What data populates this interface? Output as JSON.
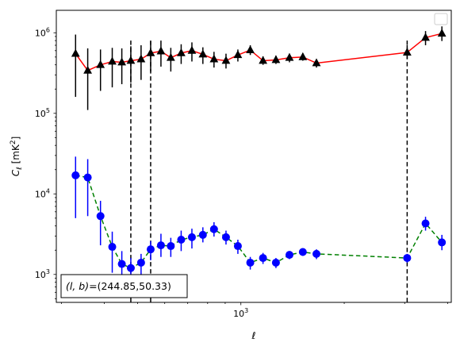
{
  "chart_data": {
    "type": "scatter",
    "title": "",
    "xlabel": "ℓ",
    "ylabel_parts": {
      "sym": "C",
      "sub": "ℓ",
      "unit_open": "  [mK",
      "unit_sup": "2",
      "unit_close": "]"
    },
    "x_scale": "log",
    "y_scale": "log",
    "xlim": [
      290,
      4100
    ],
    "ylim": [
      450,
      1900000
    ],
    "grid": false,
    "legend": {
      "placement": "top-right",
      "entries": []
    },
    "x_major_ticks": [
      {
        "value": 1000,
        "base": "10",
        "exp": "3"
      }
    ],
    "y_major_ticks": [
      {
        "value": 1000,
        "base": "10",
        "exp": "3"
      },
      {
        "value": 10000,
        "base": "10",
        "exp": "4"
      },
      {
        "value": 100000,
        "base": "10",
        "exp": "5"
      },
      {
        "value": 1000000,
        "base": "10",
        "exp": "6"
      }
    ],
    "vlines": [
      {
        "x": 478,
        "from": 450,
        "to": 800000,
        "color": "#000000",
        "style": "dashed"
      },
      {
        "x": 546,
        "from": 450,
        "to": 800000,
        "color": "#000000",
        "style": "dashed"
      },
      {
        "x": 3050,
        "from": 450,
        "to": 800000,
        "color": "#000000",
        "style": "dashed"
      }
    ],
    "series": [
      {
        "marker": "triangle",
        "marker_color": "#000000",
        "line_color": "#ff0000",
        "line_style": "solid",
        "err_color": "#000000",
        "points": [
          {
            "x": 330,
            "y": 550000,
            "lo": 160000,
            "hi": 950000
          },
          {
            "x": 358,
            "y": 340000,
            "lo": 110000,
            "hi": 640000
          },
          {
            "x": 390,
            "y": 400000,
            "lo": 190000,
            "hi": 620000
          },
          {
            "x": 422,
            "y": 440000,
            "lo": 210000,
            "hi": 650000
          },
          {
            "x": 450,
            "y": 430000,
            "lo": 230000,
            "hi": 640000
          },
          {
            "x": 478,
            "y": 450000,
            "lo": 240000,
            "hi": 680000
          },
          {
            "x": 512,
            "y": 470000,
            "lo": 260000,
            "hi": 700000
          },
          {
            "x": 546,
            "y": 560000,
            "lo": 330000,
            "hi": 790000
          },
          {
            "x": 585,
            "y": 590000,
            "lo": 380000,
            "hi": 800000
          },
          {
            "x": 625,
            "y": 490000,
            "lo": 330000,
            "hi": 650000
          },
          {
            "x": 670,
            "y": 560000,
            "lo": 410000,
            "hi": 720000
          },
          {
            "x": 720,
            "y": 600000,
            "lo": 440000,
            "hi": 760000
          },
          {
            "x": 775,
            "y": 540000,
            "lo": 410000,
            "hi": 660000
          },
          {
            "x": 835,
            "y": 470000,
            "lo": 370000,
            "hi": 580000
          },
          {
            "x": 905,
            "y": 450000,
            "lo": 360000,
            "hi": 550000
          },
          {
            "x": 980,
            "y": 530000,
            "lo": 440000,
            "hi": 620000
          },
          {
            "x": 1065,
            "y": 610000,
            "lo": 530000,
            "hi": 700000
          },
          {
            "x": 1160,
            "y": 450000,
            "lo": 400000,
            "hi": 510000
          },
          {
            "x": 1265,
            "y": 460000,
            "lo": 410000,
            "hi": 520000
          },
          {
            "x": 1385,
            "y": 490000,
            "lo": 430000,
            "hi": 550000
          },
          {
            "x": 1515,
            "y": 500000,
            "lo": 450000,
            "hi": 560000
          },
          {
            "x": 1660,
            "y": 420000,
            "lo": 370000,
            "hi": 470000
          },
          {
            "x": 3050,
            "y": 570000,
            "lo": 470000,
            "hi": 700000
          },
          {
            "x": 3450,
            "y": 870000,
            "lo": 700000,
            "hi": 1050000
          },
          {
            "x": 3850,
            "y": 980000,
            "lo": 790000,
            "hi": 1200000
          }
        ]
      },
      {
        "marker": "circle",
        "marker_color": "#0000ff",
        "line_color": "#008000",
        "line_style": "dashed",
        "err_color": "#0000ff",
        "points": [
          {
            "x": 330,
            "y": 17000,
            "lo": 5000,
            "hi": 29000
          },
          {
            "x": 358,
            "y": 16000,
            "lo": 5300,
            "hi": 27000
          },
          {
            "x": 390,
            "y": 5300,
            "lo": 2300,
            "hi": 8200
          },
          {
            "x": 422,
            "y": 2200,
            "lo": 1050,
            "hi": 3400
          },
          {
            "x": 450,
            "y": 1350,
            "lo": 800,
            "hi": 1950
          },
          {
            "x": 478,
            "y": 1200,
            "lo": 800,
            "hi": 1600
          },
          {
            "x": 512,
            "y": 1400,
            "lo": 1000,
            "hi": 1800
          },
          {
            "x": 546,
            "y": 2050,
            "lo": 1500,
            "hi": 2600
          },
          {
            "x": 585,
            "y": 2300,
            "lo": 1650,
            "hi": 3200
          },
          {
            "x": 625,
            "y": 2250,
            "lo": 1650,
            "hi": 2850
          },
          {
            "x": 670,
            "y": 2700,
            "lo": 1950,
            "hi": 3500
          },
          {
            "x": 720,
            "y": 2900,
            "lo": 2100,
            "hi": 3700
          },
          {
            "x": 775,
            "y": 3100,
            "lo": 2500,
            "hi": 3850
          },
          {
            "x": 835,
            "y": 3650,
            "lo": 2950,
            "hi": 4450
          },
          {
            "x": 905,
            "y": 2900,
            "lo": 2350,
            "hi": 3500
          },
          {
            "x": 980,
            "y": 2250,
            "lo": 1800,
            "hi": 2700
          },
          {
            "x": 1065,
            "y": 1400,
            "lo": 1150,
            "hi": 1650
          },
          {
            "x": 1160,
            "y": 1600,
            "lo": 1350,
            "hi": 1850
          },
          {
            "x": 1265,
            "y": 1400,
            "lo": 1200,
            "hi": 1600
          },
          {
            "x": 1385,
            "y": 1750,
            "lo": 1550,
            "hi": 1950
          },
          {
            "x": 1515,
            "y": 1900,
            "lo": 1700,
            "hi": 2100
          },
          {
            "x": 1660,
            "y": 1800,
            "lo": 1550,
            "hi": 2050
          },
          {
            "x": 3050,
            "y": 1600,
            "lo": 1400,
            "hi": 1800
          },
          {
            "x": 3450,
            "y": 4300,
            "lo": 3500,
            "hi": 5200
          },
          {
            "x": 3850,
            "y": 2500,
            "lo": 2000,
            "hi": 3100
          }
        ]
      }
    ],
    "annotation": {
      "lb": "(l, b)",
      "eq": "=",
      "coords": "(244.85,50.33)"
    }
  }
}
